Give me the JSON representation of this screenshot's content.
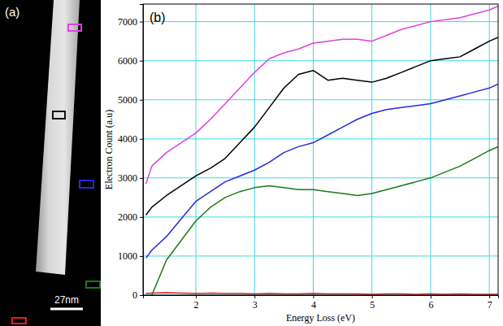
{
  "image_panel": {
    "label": "(a)",
    "scale_bar_label": "27nm"
  },
  "chart_data": {
    "type": "line",
    "panel_label": "(b)",
    "x_label": "Energy Loss (eV)",
    "y_label": "Electron Count (a.u)",
    "xlim": [
      1.1,
      7.15
    ],
    "xticks": [
      2,
      3,
      4,
      5,
      6,
      7
    ],
    "ylim": [
      0,
      7450
    ],
    "yticks": [
      0,
      1000,
      2000,
      3000,
      4000,
      5000,
      6000,
      7000
    ],
    "grid": true,
    "x": [
      1.15,
      1.25,
      1.5,
      1.75,
      2,
      2.25,
      2.5,
      2.75,
      3,
      3.25,
      3.5,
      3.75,
      4,
      4.25,
      4.5,
      4.75,
      5,
      5.25,
      5.5,
      5.75,
      6,
      6.25,
      6.5,
      6.75,
      7,
      7.15
    ],
    "series": [
      {
        "color": "#e040e0",
        "values": [
          2850,
          3300,
          3650,
          3900,
          4150,
          4500,
          4900,
          5300,
          5700,
          6050,
          6200,
          6300,
          6450,
          6500,
          6550,
          6550,
          6500,
          6650,
          6800,
          6900,
          7000,
          7050,
          7100,
          7200,
          7300,
          7400
        ]
      },
      {
        "color": "#000000",
        "values": [
          2050,
          2250,
          2550,
          2800,
          3050,
          3250,
          3500,
          3900,
          4300,
          4800,
          5300,
          5650,
          5750,
          5500,
          5550,
          5500,
          5450,
          5550,
          5700,
          5850,
          6000,
          6050,
          6100,
          6300,
          6500,
          6600
        ]
      },
      {
        "color": "#2828e0",
        "values": [
          950,
          1150,
          1500,
          1950,
          2400,
          2650,
          2900,
          3050,
          3200,
          3400,
          3650,
          3800,
          3900,
          4100,
          4300,
          4500,
          4650,
          4750,
          4800,
          4850,
          4900,
          5000,
          5100,
          5200,
          5300,
          5400
        ]
      },
      {
        "color": "#1a7a1a",
        "values": [
          null,
          0,
          900,
          1400,
          1900,
          2250,
          2500,
          2650,
          2750,
          2800,
          2750,
          2700,
          2700,
          2650,
          2600,
          2550,
          2600,
          2700,
          2800,
          2900,
          3000,
          3150,
          3300,
          3500,
          3700,
          3800
        ]
      },
      {
        "color": "#e02020",
        "values": [
          40,
          50,
          60,
          50,
          40,
          50,
          40,
          40,
          30,
          40,
          30,
          30,
          40,
          30,
          30,
          30,
          20,
          30,
          30,
          20,
          30,
          20,
          30,
          20,
          20,
          20
        ]
      }
    ]
  }
}
